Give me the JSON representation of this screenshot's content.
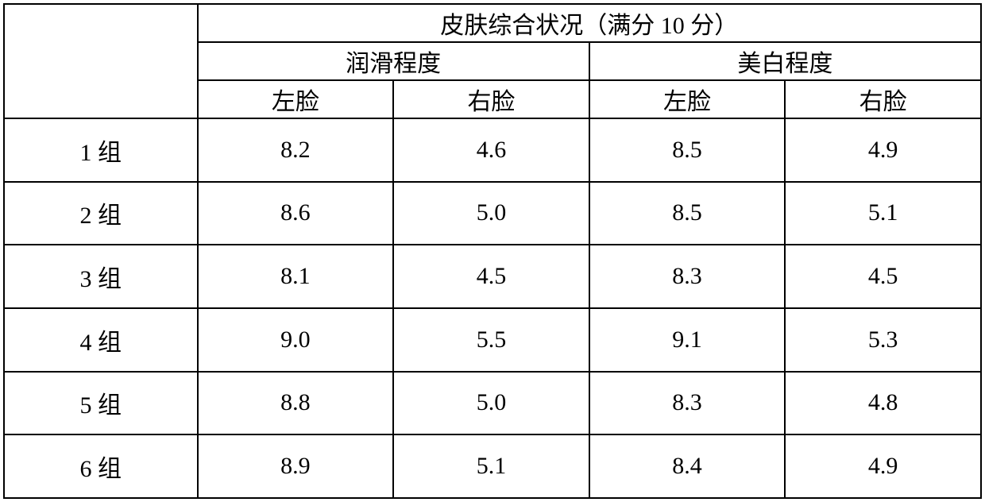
{
  "table": {
    "type": "table",
    "background_color": "#ffffff",
    "border_color": "#000000",
    "border_width": 2,
    "font_family": "SimSun",
    "font_size_pt": 22,
    "text_color": "#000000",
    "header": {
      "main_title": "皮肤综合状况（满分 10 分）",
      "group1": "润滑程度",
      "group2": "美白程度",
      "sub1": "左脸",
      "sub2": "右脸",
      "sub3": "左脸",
      "sub4": "右脸"
    },
    "rows": [
      {
        "label": "1 组",
        "v1": "8.2",
        "v2": "4.6",
        "v3": "8.5",
        "v4": "4.9"
      },
      {
        "label": "2 组",
        "v1": "8.6",
        "v2": "5.0",
        "v3": "8.5",
        "v4": "5.1"
      },
      {
        "label": "3 组",
        "v1": "8.1",
        "v2": "4.5",
        "v3": "8.3",
        "v4": "4.5"
      },
      {
        "label": "4 组",
        "v1": "9.0",
        "v2": "5.5",
        "v3": "9.1",
        "v4": "5.3"
      },
      {
        "label": "5 组",
        "v1": "8.8",
        "v2": "5.0",
        "v3": "8.3",
        "v4": "4.8"
      },
      {
        "label": "6 组",
        "v1": "8.9",
        "v2": "5.1",
        "v3": "8.4",
        "v4": "4.9"
      }
    ],
    "column_widths_percent": [
      19.8,
      20.05,
      20.05,
      20.05,
      20.05
    ]
  }
}
